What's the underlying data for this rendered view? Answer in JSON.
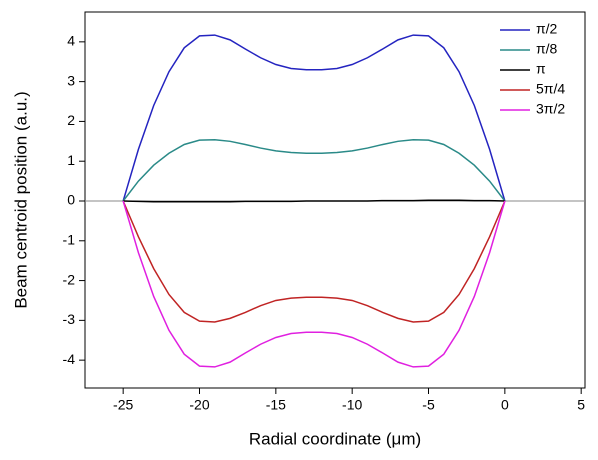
{
  "chart_data": {
    "type": "line",
    "x_label": "Radial coordinate (μm)",
    "y_label": "Beam centroid position (a.u.)",
    "x": [
      -25,
      -24,
      -23,
      -22,
      -21,
      -20,
      -19,
      -18,
      -17,
      -16,
      -15,
      -14,
      -13,
      -12,
      -11,
      -10,
      -9,
      -8,
      -7,
      -6,
      -5,
      -4,
      -3,
      -2,
      -1,
      0
    ],
    "series": [
      {
        "name": "π/2",
        "color": "#2424c0",
        "values": [
          0,
          1.3,
          2.4,
          3.25,
          3.85,
          4.15,
          4.17,
          4.05,
          3.82,
          3.6,
          3.43,
          3.33,
          3.3,
          3.3,
          3.33,
          3.43,
          3.6,
          3.82,
          4.05,
          4.17,
          4.15,
          3.85,
          3.25,
          2.4,
          1.3,
          0
        ]
      },
      {
        "name": "π/8",
        "color": "#2a8a88",
        "values": [
          0,
          0.5,
          0.9,
          1.2,
          1.42,
          1.53,
          1.54,
          1.5,
          1.42,
          1.33,
          1.26,
          1.22,
          1.2,
          1.2,
          1.22,
          1.26,
          1.33,
          1.42,
          1.5,
          1.54,
          1.53,
          1.42,
          1.2,
          0.9,
          0.5,
          0
        ]
      },
      {
        "name": "π",
        "color": "#000000",
        "values": [
          0,
          -0.01,
          -0.02,
          -0.02,
          -0.02,
          -0.02,
          -0.02,
          -0.02,
          -0.01,
          -0.01,
          -0.01,
          -0.01,
          0,
          0,
          0,
          0,
          0,
          0.01,
          0.01,
          0.01,
          0.02,
          0.02,
          0.02,
          0.01,
          0.01,
          0
        ]
      },
      {
        "name": "5π/4",
        "color": "#c02424",
        "values": [
          0,
          -0.9,
          -1.7,
          -2.35,
          -2.8,
          -3.02,
          -3.04,
          -2.95,
          -2.8,
          -2.63,
          -2.5,
          -2.44,
          -2.42,
          -2.42,
          -2.44,
          -2.5,
          -2.63,
          -2.8,
          -2.95,
          -3.04,
          -3.02,
          -2.8,
          -2.35,
          -1.7,
          -0.9,
          0
        ]
      },
      {
        "name": "3π/2",
        "color": "#e020e0",
        "values": [
          0,
          -1.3,
          -2.4,
          -3.25,
          -3.85,
          -4.15,
          -4.17,
          -4.05,
          -3.82,
          -3.6,
          -3.43,
          -3.33,
          -3.3,
          -3.3,
          -3.33,
          -3.43,
          -3.6,
          -3.82,
          -4.05,
          -4.17,
          -4.15,
          -3.85,
          -3.25,
          -2.4,
          -1.3,
          0
        ]
      }
    ],
    "xlim": [
      -27.5,
      5.25
    ],
    "xticks": [
      -25,
      -20,
      -15,
      -10,
      -5,
      0,
      5
    ],
    "ylim": [
      -4.7,
      4.75
    ],
    "yticks": [
      -4,
      -3,
      -2,
      -1,
      0,
      1,
      2,
      3,
      4
    ],
    "zero_line": true,
    "legend": "upper-right"
  }
}
